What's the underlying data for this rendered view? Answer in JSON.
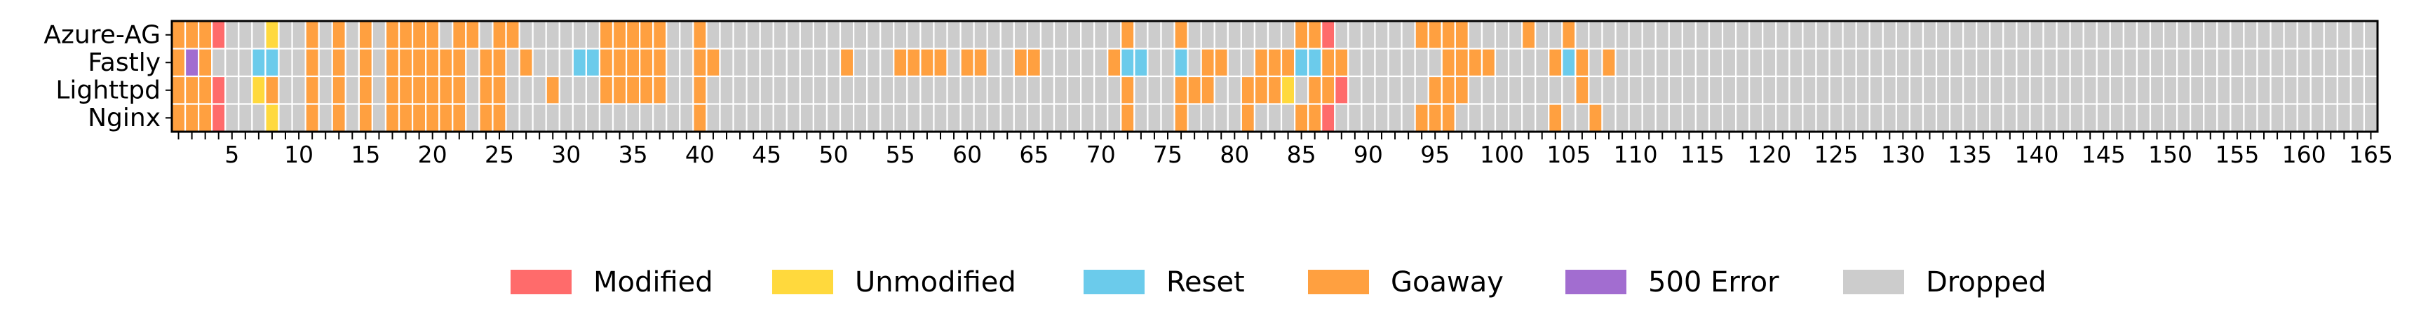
{
  "chart_data": {
    "type": "heatmap",
    "rows": [
      "Azure-AG",
      "Fastly",
      "Lighttpd",
      "Nginx"
    ],
    "columns": {
      "start": 1,
      "end": 165
    },
    "x_tick_labels": [
      "5",
      "10",
      "15",
      "20",
      "25",
      "30",
      "35",
      "40",
      "45",
      "50",
      "55",
      "60",
      "65",
      "70",
      "75",
      "80",
      "85",
      "90",
      "95",
      "100",
      "105",
      "110",
      "115",
      "120",
      "125",
      "130",
      "135",
      "140",
      "145",
      "150",
      "155",
      "160",
      "165"
    ],
    "categories": [
      {
        "code": "M",
        "name": "Modified",
        "color": "#ff6b6b"
      },
      {
        "code": "U",
        "name": "Unmodified",
        "color": "#ffd93d"
      },
      {
        "code": "R",
        "name": "Reset",
        "color": "#6bcbeb"
      },
      {
        "code": "G",
        "name": "Goaway",
        "color": "#ffa040"
      },
      {
        "code": "E",
        "name": "500 Error",
        "color": "#a26dd0"
      },
      {
        "code": "D",
        "name": "Dropped",
        "color": "#cccccc"
      }
    ],
    "legend_position": "bottom",
    "grid": true,
    "values": {
      "Azure-AG": "GGGMDDDUDDGDGDGDGGGGDGGDGGDDDDDDGGGGGDDGDDDDDDDDDDDDDDDDDDDDDDDDDDDDDDDGDDDGDDDDDDDDGGMDDDDDDGGGGDDDDGDDGDDDDDDDDDDDDDDDDDDDDDDDDDDDDDDDDDDDDDDDDDDDDDDDDDDDDDDDDD",
      "Fastly": "GEGDDDRRDDGDGDGDGGGGGGDGGDGDDDRRGGGGGDDGGDDDDDDDDDGDDDGGGGDGGDDGGDDDDDGRRDDRDGGDDGGGRRGGDDDDDDDGGGGDDDDGRGDGDDDDDDDDDDDDDDDDDDDDDDDDDDDDDDDDDDDDDDDDDDDDDDDDDDDDDD",
      "Lighttpd": "GGGMDDUGDDGDGDGDGGGGGGDGGDDDGDDDGGGGGDDGDDDDDDDDDDDDDDDDDDDDDDDDDDDDDDDGDDDGGGDDGGGUDGGMDDDDDDGGGDDDDDDDDGDDDDDDDDDDDDDDDDDDDDDDDDDDDDDDDDDDDDDDDDDDDDDDDDDDDDDDDDD",
      "Nginx": "GGGMDDDUDDGDGDGDGGGGGGDGGDDDDDDDDDDDDDDGDDDDDDDDDDDDDDDDDDDDDDDDDDDDDDDGDDDGDDDDGDDDGGMDDDDDDGGGDDDDDDDGDDGDDDDDDDDDDDDDDDDDDDDDDDDDDDDDDDDDDDDDDDDDDDDDDDDDDDDDDDD"
    }
  }
}
